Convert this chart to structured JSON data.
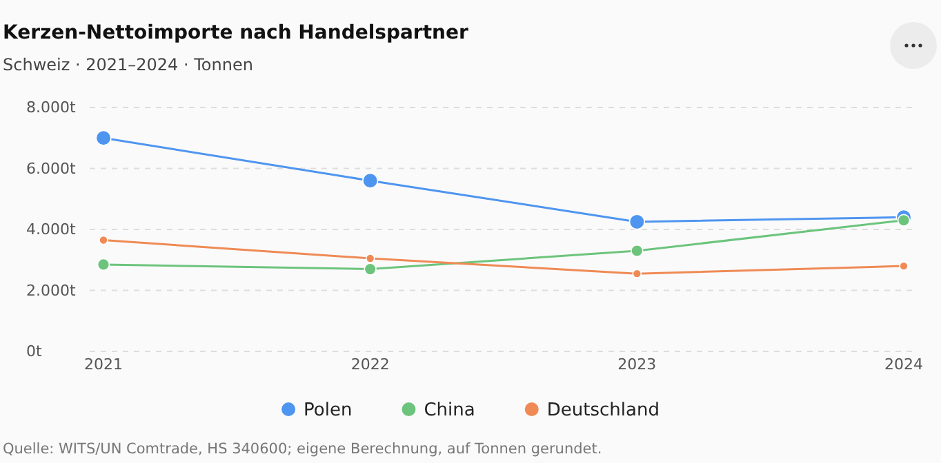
{
  "chart_data": {
    "type": "line",
    "title": "Kerzen-Nettoimporte nach Handelspartner",
    "subtitle": "Schweiz · 2021–2024 · Tonnen",
    "categories": [
      "2021",
      "2022",
      "2023",
      "2024"
    ],
    "series": [
      {
        "name": "Polen",
        "color": "#4e95f0",
        "values": [
          7000,
          5600,
          4250,
          4400
        ]
      },
      {
        "name": "China",
        "color": "#6cc47c",
        "values": [
          2850,
          2700,
          3300,
          4300
        ]
      },
      {
        "name": "Deutschland",
        "color": "#ef8a55",
        "values": [
          3650,
          3050,
          2550,
          2800
        ]
      }
    ],
    "ylim": [
      0,
      8000
    ],
    "yticks": [
      {
        "value": 0,
        "label": "0t"
      },
      {
        "value": 2000,
        "label": "2.000t"
      },
      {
        "value": 4000,
        "label": "4.000t"
      },
      {
        "value": 6000,
        "label": "6.000t"
      },
      {
        "value": 8000,
        "label": "8.000t"
      }
    ],
    "grid": "y",
    "legend": "bottom",
    "marker": "circle",
    "line_style": "solid",
    "annotations": [
      "Quelle: WITS/UN Comtrade, HS 340600; eigene Berechnung, auf Tonnen gerundet."
    ]
  }
}
